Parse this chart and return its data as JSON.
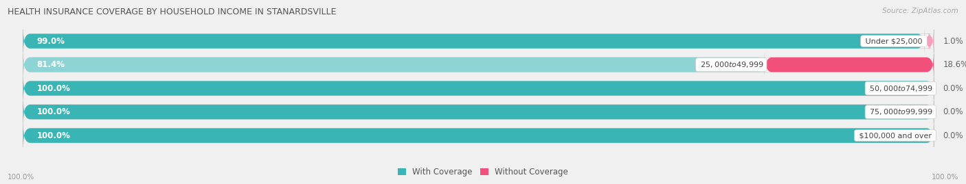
{
  "title": "HEALTH INSURANCE COVERAGE BY HOUSEHOLD INCOME IN STANARDSVILLE",
  "source": "Source: ZipAtlas.com",
  "categories": [
    "Under $25,000",
    "$25,000 to $49,999",
    "$50,000 to $74,999",
    "$75,000 to $99,999",
    "$100,000 and over"
  ],
  "with_coverage": [
    99.0,
    81.4,
    100.0,
    100.0,
    100.0
  ],
  "without_coverage": [
    1.0,
    18.6,
    0.0,
    0.0,
    0.0
  ],
  "color_with": "#3ab5b5",
  "color_with_light": "#8ed4d4",
  "color_without_dark": "#f0507a",
  "color_without_light": "#f5a0bc",
  "bg_color": "#f0f0f0",
  "bar_bg": "#e0e0e8",
  "title_color": "#555555",
  "source_color": "#aaaaaa",
  "figsize": [
    14.06,
    2.69
  ],
  "dpi": 100,
  "bar_height": 0.62
}
